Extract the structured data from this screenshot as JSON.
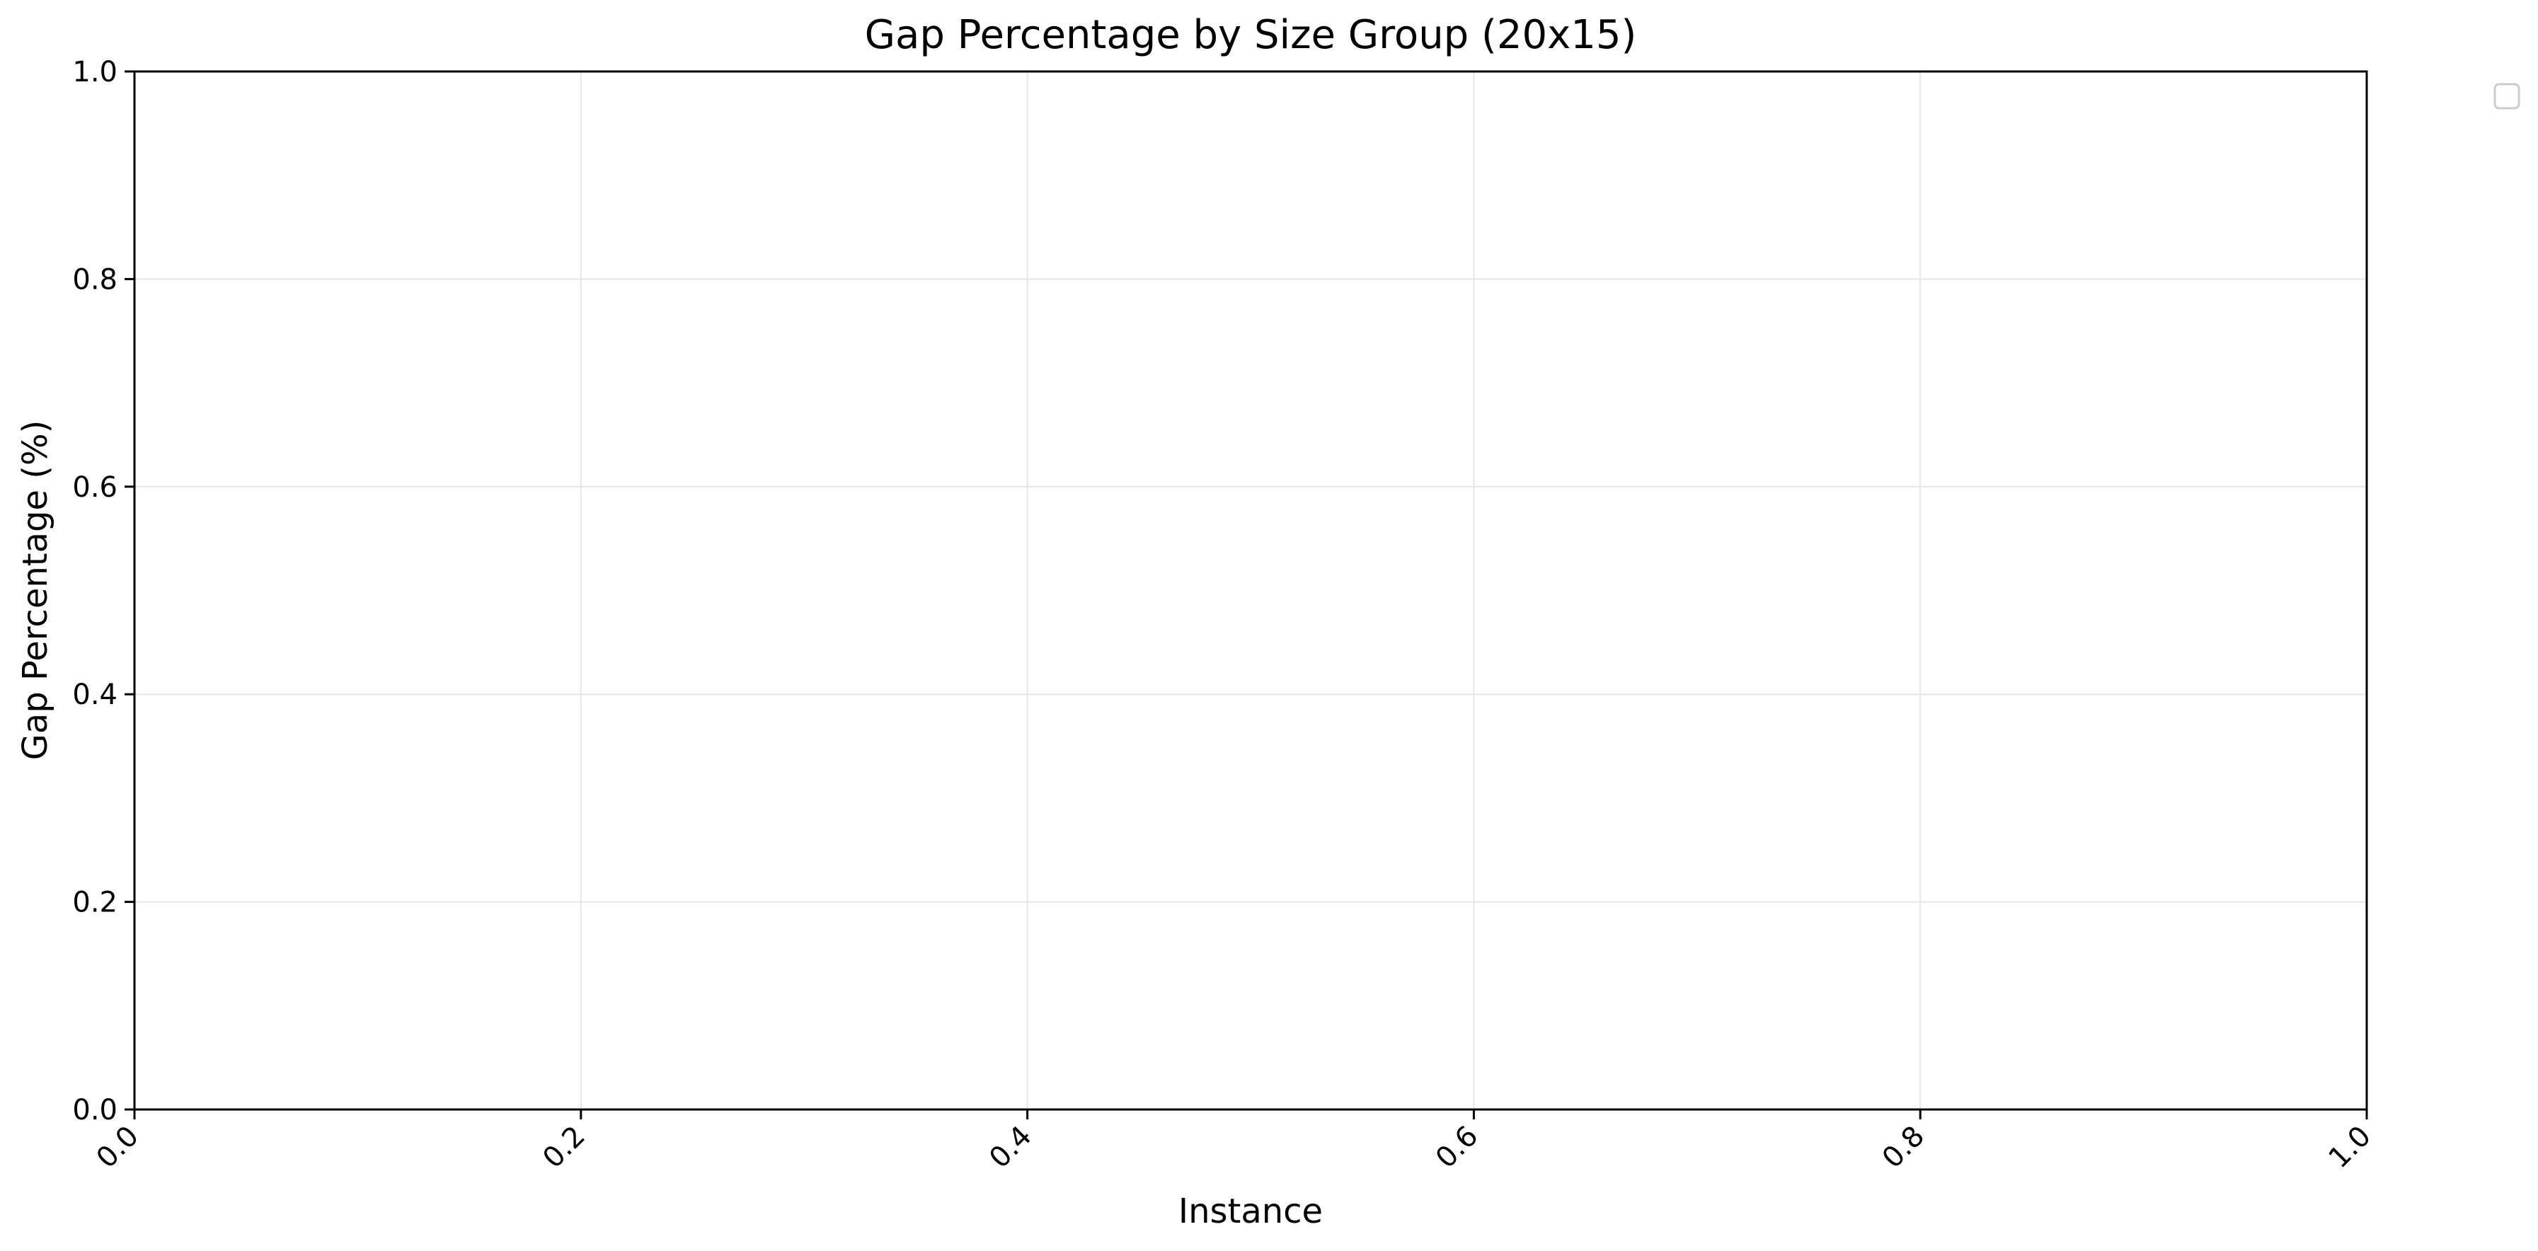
{
  "chart_data": {
    "type": "line",
    "title": "Gap Percentage by Size Group (20x15)",
    "xlabel": "Instance",
    "ylabel": "Gap Percentage (%)",
    "xlim": [
      0.0,
      1.0
    ],
    "ylim": [
      0.0,
      1.0
    ],
    "x_ticks": [
      "0.0",
      "0.2",
      "0.4",
      "0.6",
      "0.8",
      "1.0"
    ],
    "y_ticks": [
      "0.0",
      "0.2",
      "0.4",
      "0.6",
      "0.8",
      "1.0"
    ],
    "series": [],
    "grid": true,
    "legend": "outside-top-right",
    "colors": {
      "axis": "#000000",
      "grid": "#e6e6e6",
      "legend_border": "#cccccc"
    }
  }
}
